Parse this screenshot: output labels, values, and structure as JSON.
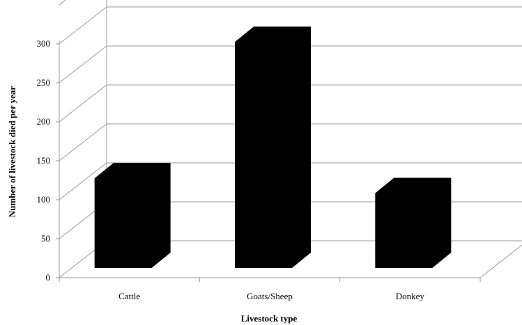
{
  "chart_data": {
    "type": "bar",
    "title": "",
    "xlabel": "Livestock type",
    "ylabel": "Number of livestock died per year",
    "categories": [
      "Cattle",
      "Goats/Sheep",
      "Donkey"
    ],
    "values": [
      115,
      290,
      96
    ],
    "ylim": [
      0,
      300
    ],
    "yticks": [
      "0",
      "50",
      "100",
      "150",
      "200",
      "250",
      "300"
    ],
    "grid": true,
    "three_d": true,
    "legend": "none",
    "bar_color": "#000000",
    "grid_color": "#9a9a9a"
  }
}
